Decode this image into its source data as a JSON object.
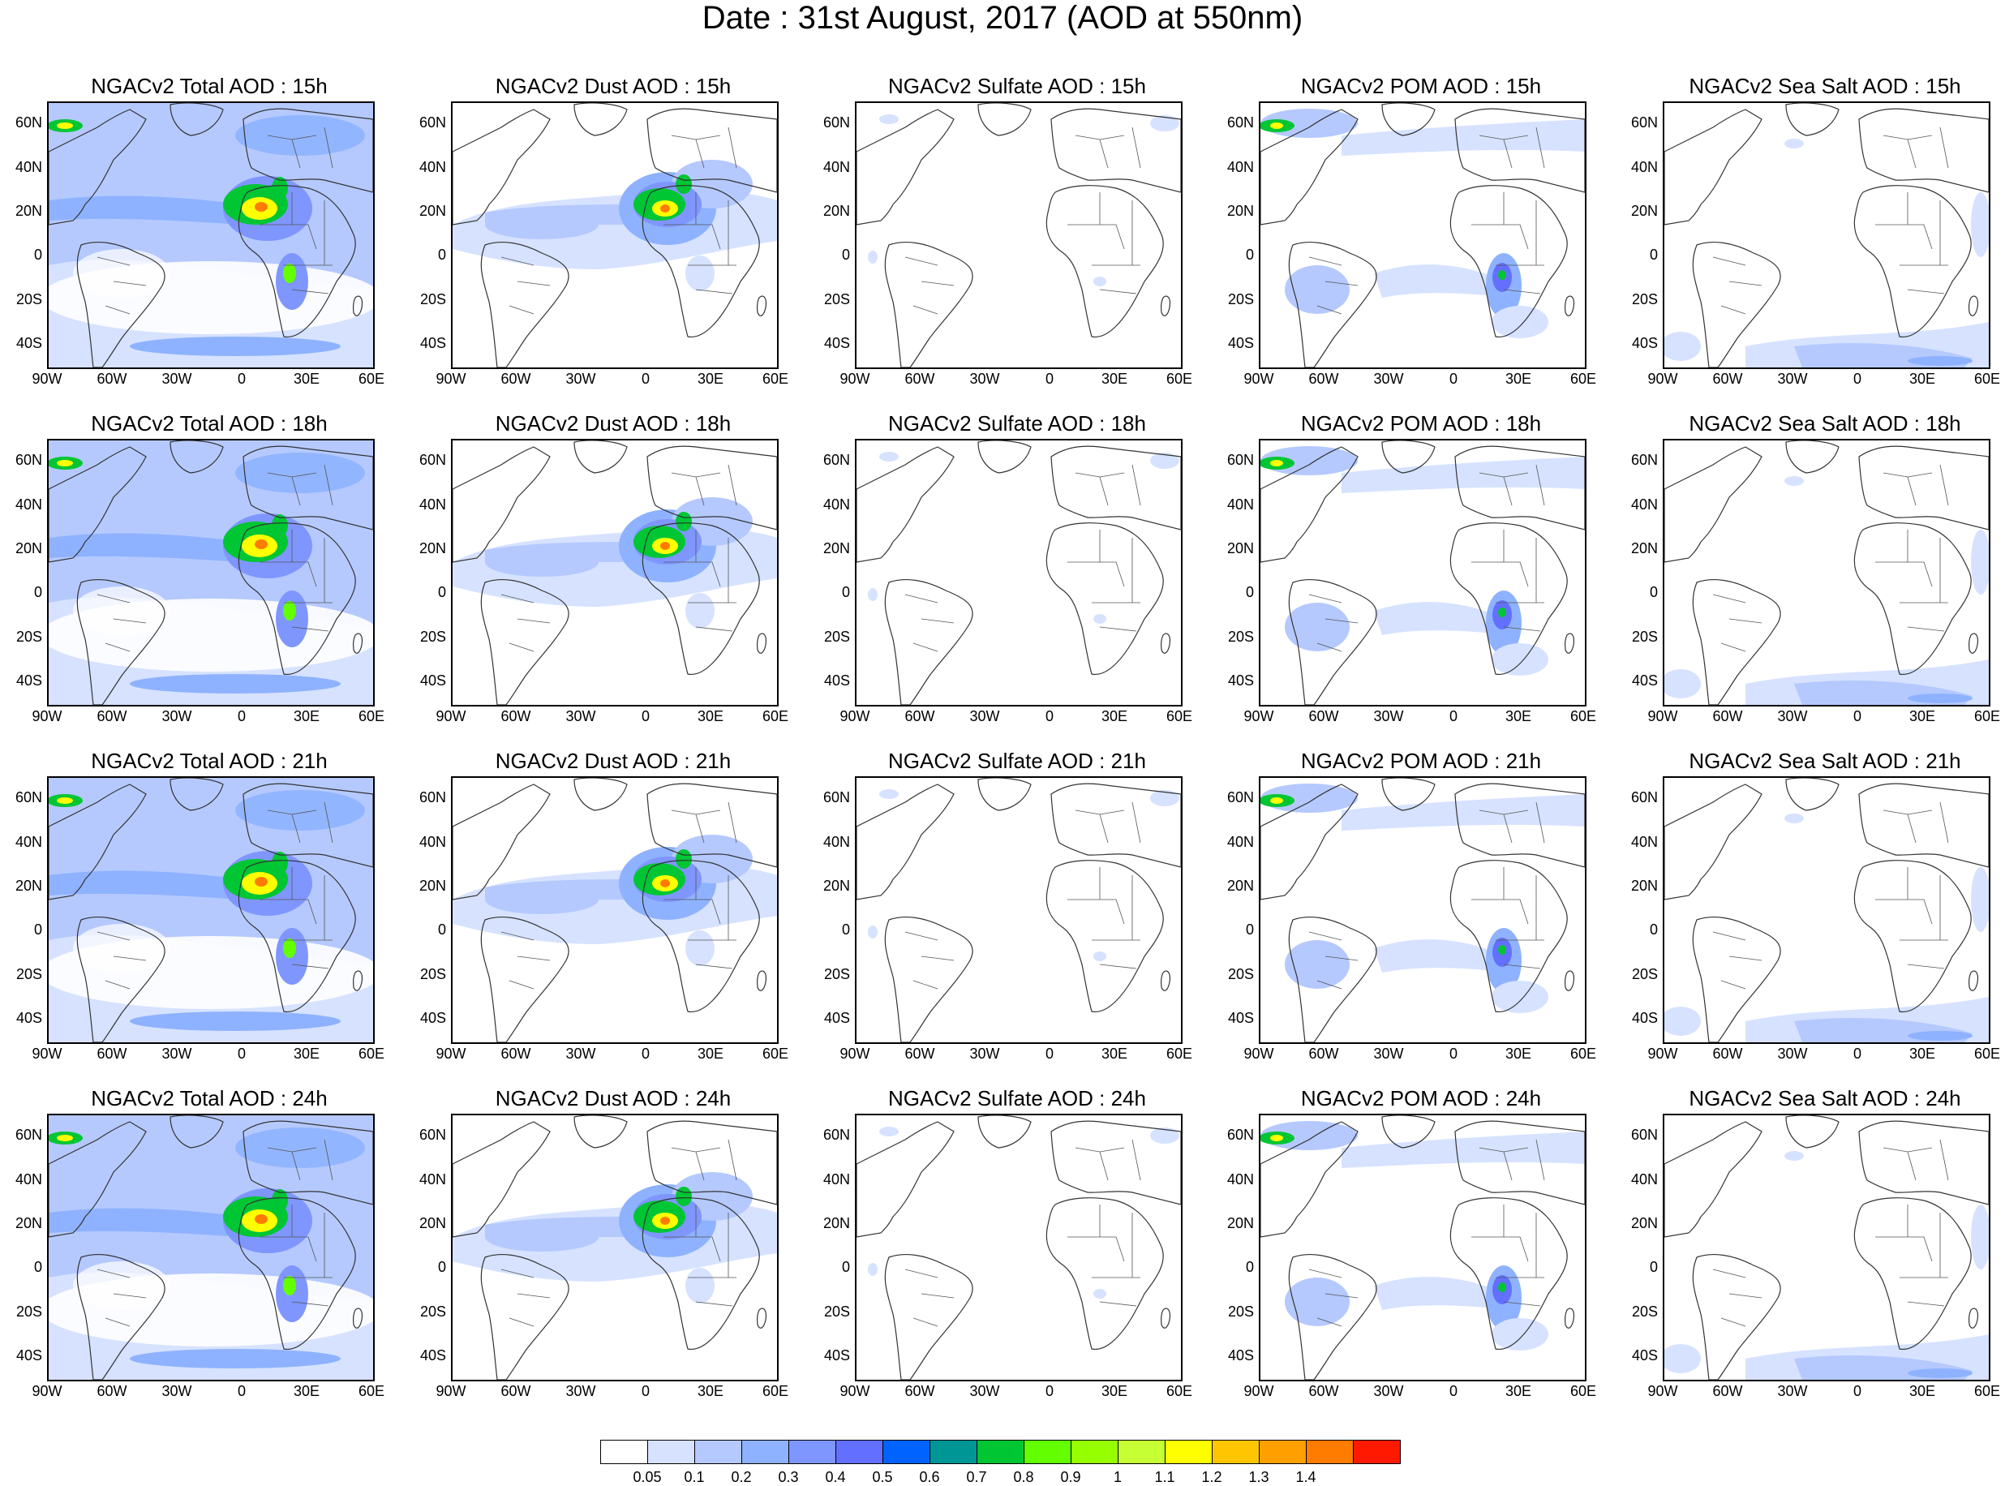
{
  "title": "Date : 31st August, 2017 (AOD at 550nm)",
  "lat_ticks": [
    "60N",
    "40N",
    "20N",
    "0",
    "20S",
    "40S"
  ],
  "lon_ticks": [
    "90W",
    "60W",
    "30W",
    "0",
    "30E",
    "60E"
  ],
  "rows": [
    {
      "hour": "15h",
      "titles": [
        "NGACv2 Total AOD : 15h",
        "NGACv2 Dust AOD : 15h",
        "NGACv2 Sulfate AOD : 15h",
        "NGACv2 POM AOD : 15h",
        "NGACv2 Sea Salt AOD : 15h"
      ]
    },
    {
      "hour": "18h",
      "titles": [
        "NGACv2 Total AOD : 18h",
        "NGACv2 Dust AOD : 18h",
        "NGACv2 Sulfate AOD : 18h",
        "NGACv2 POM AOD : 18h",
        "NGACv2 Sea Salt AOD : 18h"
      ]
    },
    {
      "hour": "21h",
      "titles": [
        "NGACv2 Total AOD : 21h",
        "NGACv2 Dust AOD : 21h",
        "NGACv2 Sulfate AOD : 21h",
        "NGACv2 POM AOD : 21h",
        "NGACv2 Sea Salt AOD : 21h"
      ]
    },
    {
      "hour": "24h",
      "titles": [
        "NGACv2 Total AOD : 24h",
        "NGACv2 Dust AOD : 24h",
        "NGACv2 Sulfate AOD : 24h",
        "NGACv2 POM AOD : 24h",
        "NGACv2 Sea Salt  AOD : 24h"
      ]
    }
  ],
  "colorbar": {
    "labels": [
      "0.05",
      "0.1",
      "0.2",
      "0.3",
      "0.4",
      "0.5",
      "0.6",
      "0.7",
      "0.8",
      "0.9",
      "1",
      "1.1",
      "1.2",
      "1.3",
      "1.4"
    ],
    "colors": [
      "#ffffff",
      "#d6e2ff",
      "#b5c9ff",
      "#8eb2ff",
      "#7f96ff",
      "#6370ff",
      "#0063ff",
      "#009696",
      "#00c633",
      "#63ff00",
      "#96ff00",
      "#c6ff33",
      "#ffff00",
      "#ffc600",
      "#ffa000",
      "#ff7c00",
      "#ff1900"
    ]
  }
}
